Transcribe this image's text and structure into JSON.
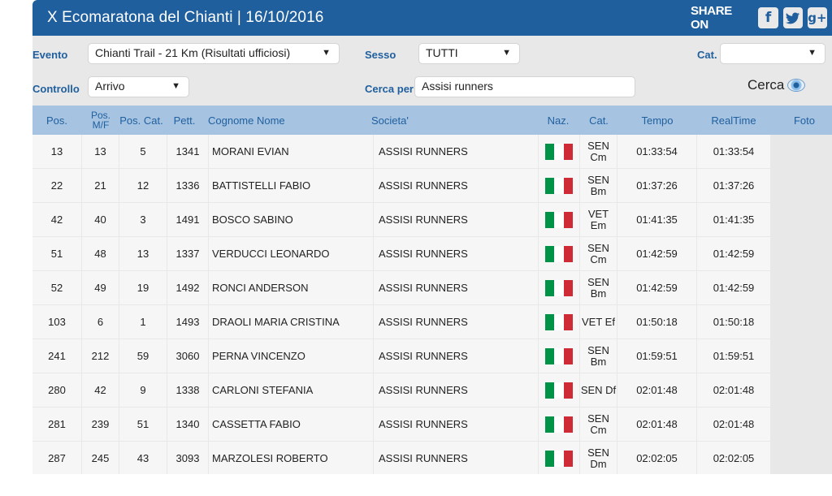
{
  "header": {
    "title": "X Ecomaratona del Chianti  |  16/10/2016",
    "share_label": "SHARE ON",
    "share_icons": [
      {
        "name": "facebook-icon",
        "glyph": "f"
      },
      {
        "name": "twitter-icon",
        "glyph": "🐦"
      },
      {
        "name": "google-plus-icon",
        "glyph": "g+"
      }
    ]
  },
  "filters": {
    "evento_label": "Evento",
    "evento_value": "Chianti Trail - 21 Km (Risultati ufficiosi)",
    "sesso_label": "Sesso",
    "sesso_value": "TUTTI",
    "cat_label": "Cat.",
    "cat_value": "",
    "controllo_label": "Controllo",
    "controllo_value": "Arrivo",
    "cerca_per_label": "Cerca per",
    "cerca_per_value": "Assisi runners",
    "cerca_button": "Cerca"
  },
  "table": {
    "headers": {
      "pos": "Pos.",
      "pos_mf": "Pos. M/F",
      "pos_cat": "Pos. Cat.",
      "pett": "Pett.",
      "nome": "Cognome Nome",
      "societa": "Societa'",
      "naz": "Naz.",
      "cat": "Cat.",
      "tempo": "Tempo",
      "realtime": "RealTime",
      "foto": "Foto"
    },
    "rows": [
      {
        "pos": "13",
        "pos_mf": "13",
        "pos_cat": "5",
        "pett": "1341",
        "nome": "MORANI EVIAN",
        "societa": "ASSISI RUNNERS",
        "cat": "SEN Cm",
        "tempo": "01:33:54",
        "realtime": "01:33:54"
      },
      {
        "pos": "22",
        "pos_mf": "21",
        "pos_cat": "12",
        "pett": "1336",
        "nome": "BATTISTELLI FABIO",
        "societa": "ASSISI RUNNERS",
        "cat": "SEN Bm",
        "tempo": "01:37:26",
        "realtime": "01:37:26"
      },
      {
        "pos": "42",
        "pos_mf": "40",
        "pos_cat": "3",
        "pett": "1491",
        "nome": "BOSCO SABINO",
        "societa": "ASSISI RUNNERS",
        "cat": "VET Em",
        "tempo": "01:41:35",
        "realtime": "01:41:35"
      },
      {
        "pos": "51",
        "pos_mf": "48",
        "pos_cat": "13",
        "pett": "1337",
        "nome": "VERDUCCI LEONARDO",
        "societa": "ASSISI RUNNERS",
        "cat": "SEN Cm",
        "tempo": "01:42:59",
        "realtime": "01:42:59"
      },
      {
        "pos": "52",
        "pos_mf": "49",
        "pos_cat": "19",
        "pett": "1492",
        "nome": "RONCI ANDERSON",
        "societa": "ASSISI RUNNERS",
        "cat": "SEN Bm",
        "tempo": "01:42:59",
        "realtime": "01:42:59"
      },
      {
        "pos": "103",
        "pos_mf": "6",
        "pos_cat": "1",
        "pett": "1493",
        "nome": "DRAOLI MARIA CRISTINA",
        "societa": "ASSISI RUNNERS",
        "cat": "VET Ef",
        "tempo": "01:50:18",
        "realtime": "01:50:18"
      },
      {
        "pos": "241",
        "pos_mf": "212",
        "pos_cat": "59",
        "pett": "3060",
        "nome": "PERNA VINCENZO",
        "societa": "ASSISI RUNNERS",
        "cat": "SEN Bm",
        "tempo": "01:59:51",
        "realtime": "01:59:51"
      },
      {
        "pos": "280",
        "pos_mf": "42",
        "pos_cat": "9",
        "pett": "1338",
        "nome": "CARLONI STEFANIA",
        "societa": "ASSISI RUNNERS",
        "cat": "SEN Df",
        "tempo": "02:01:48",
        "realtime": "02:01:48"
      },
      {
        "pos": "281",
        "pos_mf": "239",
        "pos_cat": "51",
        "pett": "1340",
        "nome": "CASSETTA FABIO",
        "societa": "ASSISI RUNNERS",
        "cat": "SEN Cm",
        "tempo": "02:01:48",
        "realtime": "02:01:48"
      },
      {
        "pos": "287",
        "pos_mf": "245",
        "pos_cat": "43",
        "pett": "3093",
        "nome": "MARZOLESI ROBERTO",
        "societa": "ASSISI RUNNERS",
        "cat": "SEN Dm",
        "tempo": "02:02:05",
        "realtime": "02:02:05"
      }
    ]
  },
  "colors": {
    "brand_blue": "#1f5f9e",
    "header_row": "#a6c4e2",
    "flag_green": "#009246",
    "flag_white": "#ffffff",
    "flag_red": "#ce2b37"
  }
}
